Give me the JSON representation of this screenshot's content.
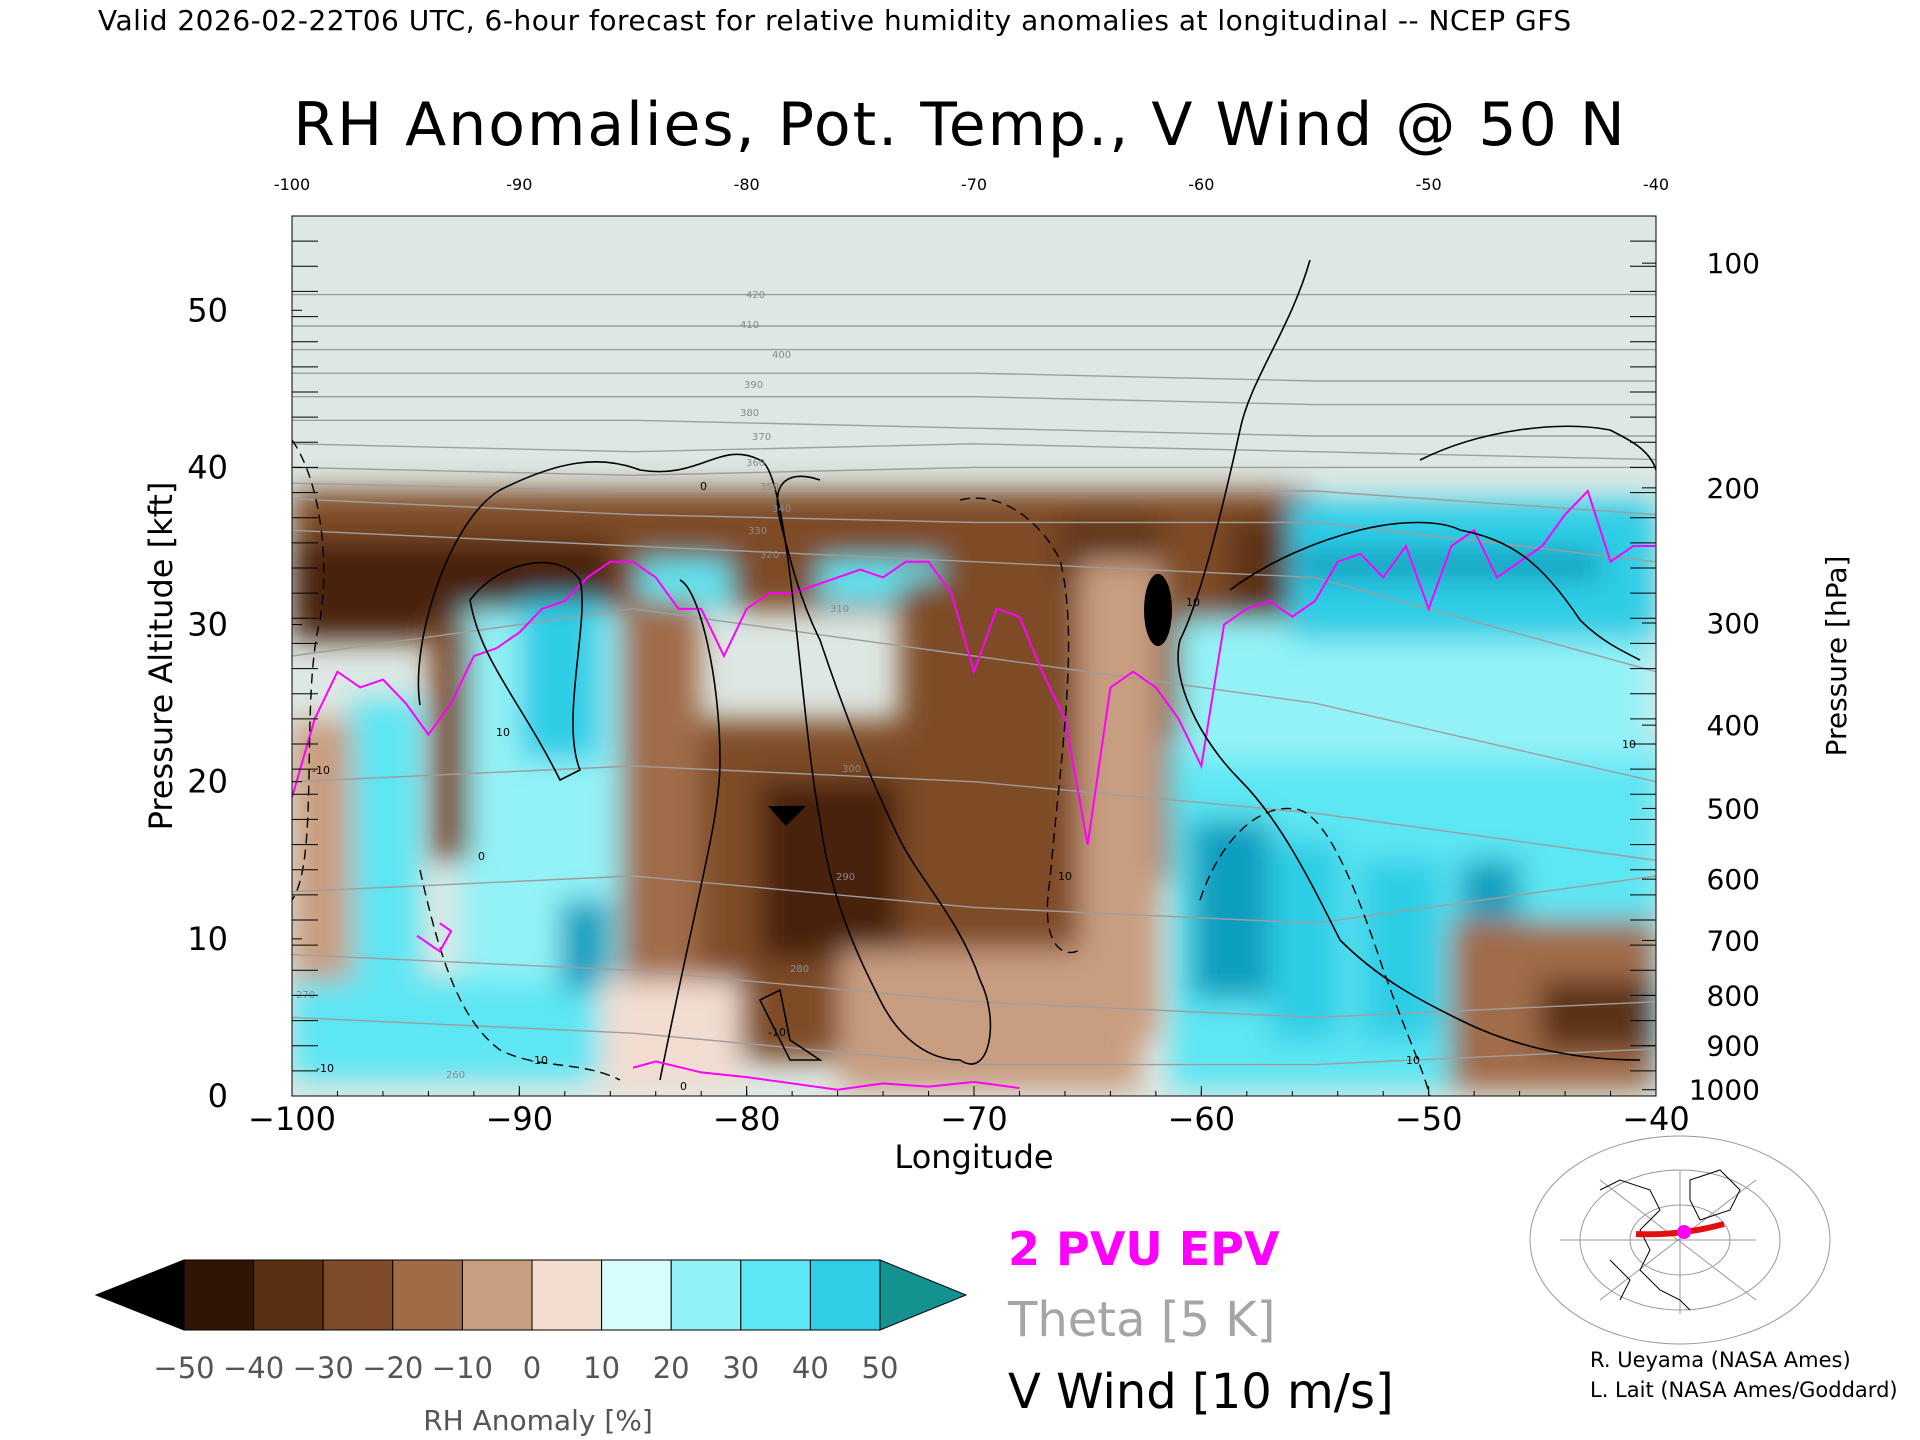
{
  "header": {
    "valid_line": "Valid 2026-02-22T06 UTC, 6-hour forecast for relative humidity anomalies at longitudinal -- NCEP GFS"
  },
  "chart_data": {
    "type": "heatmap",
    "title": "RH Anomalies, Pot. Temp., V Wind @ 50 N",
    "xlabel": "Longitude",
    "ylabel_left": "Pressure Altitude [kft]",
    "ylabel_right": "Pressure [hPa]",
    "xlim": [
      -100,
      -40
    ],
    "ylim": [
      0,
      56
    ],
    "x_ticks_bottom": [
      "−100",
      "−90",
      "−80",
      "−70",
      "−60",
      "−50",
      "−40"
    ],
    "x_tick_values": [
      -100,
      -90,
      -80,
      -70,
      -60,
      -50,
      -40
    ],
    "x_ticks_top": [
      "-100",
      "-90",
      "-80",
      "-70",
      "-60",
      "-50",
      "-40"
    ],
    "y_ticks_left": [
      "0",
      "10",
      "20",
      "30",
      "40",
      "50"
    ],
    "y_tick_values": [
      0,
      10,
      20,
      30,
      40,
      50
    ],
    "pressure_ticks": [
      {
        "label": "100",
        "kft": 53.0
      },
      {
        "label": "200",
        "kft": 38.7
      },
      {
        "label": "300",
        "kft": 30.1
      },
      {
        "label": "400",
        "kft": 23.6
      },
      {
        "label": "500",
        "kft": 18.3
      },
      {
        "label": "600",
        "kft": 13.8
      },
      {
        "label": "700",
        "kft": 9.9
      },
      {
        "label": "800",
        "kft": 6.4
      },
      {
        "label": "900",
        "kft": 3.2
      },
      {
        "label": "1000",
        "kft": 0.4
      }
    ],
    "colorbar": {
      "label": "RH Anomaly [%]",
      "tick_labels": [
        "−50",
        "−40",
        "−30",
        "−20",
        "−10",
        "0",
        "10",
        "20",
        "30",
        "40",
        "50"
      ],
      "bin_colors": [
        "#301504",
        "#5b3012",
        "#7e4c28",
        "#a06c48",
        "#c99d80",
        "#f2ddd0",
        "#d6fcfc",
        "#93f2f7",
        "#5de6f3",
        "#2fcde6",
        "#0e9fbf"
      ],
      "under_color": "#000000",
      "over_color": "#13928f"
    },
    "series": [
      {
        "name": "2 PVU EPV",
        "color": "#ff00ff",
        "x": [
          -100,
          -99,
          -98,
          -97,
          -96,
          -95,
          -94,
          -93,
          -92,
          -91,
          -90,
          -89,
          -88,
          -87,
          -86,
          -85,
          -84,
          -83,
          -82,
          -81,
          -80,
          -79,
          -78,
          -77,
          -76,
          -75,
          -74,
          -73,
          -72,
          -71,
          -70,
          -69,
          -68,
          -67,
          -66,
          -65,
          -64,
          -63,
          -62,
          -61,
          -60,
          -59,
          -58,
          -57,
          -56,
          -55,
          -54,
          -53,
          -52,
          -51,
          -50,
          -49,
          -48,
          -47,
          -46,
          -45,
          -44,
          -43,
          -42,
          -41,
          -40
        ],
        "y": [
          19,
          24,
          27,
          26,
          26.5,
          25,
          23,
          25,
          28,
          28.5,
          29.5,
          31,
          31.5,
          33,
          34,
          34,
          33,
          31,
          31,
          28,
          31,
          32,
          32,
          32.5,
          33,
          33.5,
          33,
          34,
          34,
          32,
          27,
          31,
          30.5,
          27,
          24,
          16,
          26,
          27,
          26,
          24,
          21,
          30,
          31,
          31.5,
          30.5,
          31.5,
          34,
          34.5,
          33,
          35,
          31,
          35,
          36,
          33,
          34,
          35,
          37,
          38.5,
          34,
          35,
          35
        ]
      },
      {
        "name": "Theta [5 K]",
        "color": "#a5a5a5",
        "levels": [
          260,
          270,
          280,
          290,
          300,
          310,
          320,
          330,
          340,
          350,
          360,
          370,
          380,
          390,
          400,
          410,
          420
        ],
        "x": [
          -100,
          -85,
          -70,
          -55,
          -40
        ],
        "contour_alt": {
          "270": [
            5,
            4,
            2,
            2,
            3
          ],
          "280": [
            9,
            8,
            6,
            5,
            6
          ],
          "290": [
            13,
            14,
            12,
            11,
            14
          ],
          "300": [
            20,
            21,
            20,
            18,
            15
          ],
          "310": [
            28,
            31,
            28,
            25,
            20
          ],
          "320": [
            36,
            35,
            34,
            33,
            27
          ],
          "330": [
            38,
            37,
            36.5,
            36.5,
            34
          ],
          "340": [
            39,
            38.5,
            38.5,
            38.5,
            37
          ],
          "350": [
            40,
            39.5,
            40,
            40,
            40
          ],
          "360": [
            41.5,
            41,
            41.5,
            41,
            40.5
          ],
          "370": [
            43,
            43,
            42.5,
            42,
            42
          ],
          "380": [
            44.5,
            44.5,
            44.5,
            44,
            44
          ],
          "390": [
            46,
            46,
            46,
            45.5,
            45.5
          ],
          "400": [
            47.5,
            47.5,
            47.5,
            47.5,
            47.5
          ],
          "410": [
            49,
            49,
            49,
            49,
            49
          ],
          "420": [
            51,
            51,
            51,
            51,
            51
          ]
        }
      },
      {
        "name": "V Wind [10 m/s]",
        "color": "#000000",
        "contour_labels": [
          "0",
          "10",
          "0",
          "10",
          "-10",
          "-10",
          "-10",
          "10",
          "0",
          "10",
          "-10",
          "10"
        ]
      }
    ],
    "inline_theta_labels": [
      "420",
      "410",
      "400",
      "390",
      "380",
      "370",
      "360",
      "350",
      "340",
      "330",
      "320",
      "310",
      "300",
      "290",
      "280",
      "270",
      "260"
    ]
  },
  "legend": {
    "epv": "2 PVU EPV",
    "theta": "Theta [5 K]",
    "vwind": "V Wind [10 m/s]"
  },
  "credits": {
    "line1": "R. Ueyama (NASA Ames)",
    "line2": "L. Lait (NASA Ames/Goddard)"
  }
}
